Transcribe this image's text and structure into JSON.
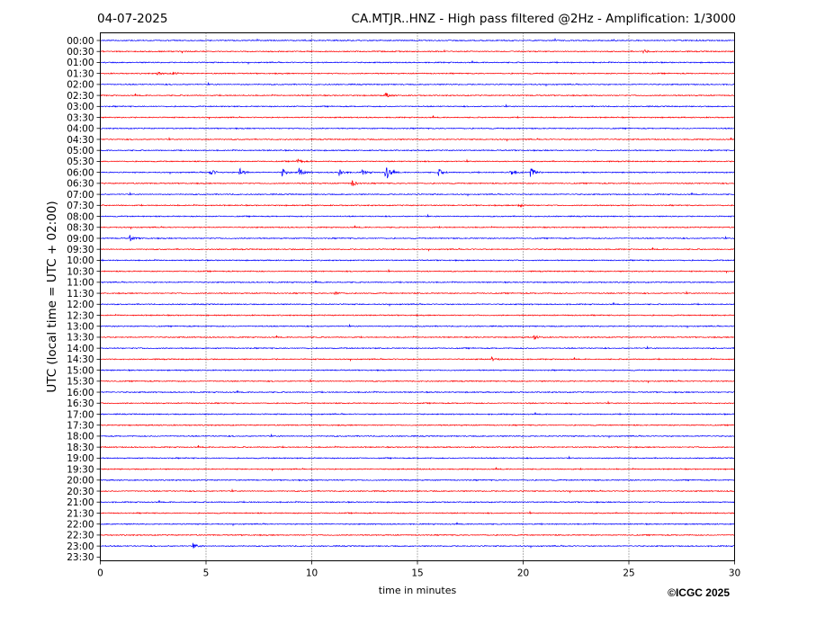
{
  "header": {
    "date": "04-07-2025",
    "title": "CA.MTJR..HNZ - High pass filtered @2Hz - Amplification: 1/3000"
  },
  "footer": {
    "copyright": "©ICGC 2025"
  },
  "colors": {
    "trace_a": "#0000ff",
    "trace_b": "#ff0000",
    "grid": "#000000"
  },
  "chart_data": {
    "type": "line",
    "title": "CA.MTJR..HNZ - High pass filtered @2Hz - Amplification: 1/3000",
    "xlabel": "time in minutes",
    "ylabel": "UTC (local time = UTC + 02:00)",
    "xlim": [
      0,
      30
    ],
    "x_ticks": [
      0,
      5,
      10,
      15,
      20,
      25,
      30
    ],
    "x_tick_labels": [
      "0",
      "5",
      "10",
      "15",
      "20",
      "25",
      "30"
    ],
    "grid": "vertical dotted at 5, 10, 15, 20, 25",
    "y_tick_labels": [
      "00:00",
      "00:30",
      "01:00",
      "01:30",
      "02:00",
      "02:30",
      "03:00",
      "03:30",
      "04:00",
      "04:30",
      "05:00",
      "05:30",
      "06:00",
      "06:30",
      "07:00",
      "07:30",
      "08:00",
      "08:30",
      "09:00",
      "09:30",
      "10:00",
      "10:30",
      "11:00",
      "11:30",
      "12:00",
      "12:30",
      "13:00",
      "13:30",
      "14:00",
      "14:30",
      "15:00",
      "15:30",
      "16:00",
      "16:30",
      "17:00",
      "17:30",
      "18:00",
      "18:30",
      "19:00",
      "19:30",
      "20:00",
      "20:30",
      "21:00",
      "21:30",
      "22:00",
      "22:30",
      "23:00",
      "23:30"
    ],
    "traces_available": 47,
    "trace_colors_alternate": [
      "blue",
      "red"
    ],
    "events": [
      {
        "row": "00:30",
        "minute": 25.7,
        "amp": 0.35
      },
      {
        "row": "01:30",
        "minute": 2.7,
        "amp": 0.3
      },
      {
        "row": "01:30",
        "minute": 3.4,
        "amp": 0.3
      },
      {
        "row": "02:30",
        "minute": 13.5,
        "amp": 0.45
      },
      {
        "row": "05:30",
        "minute": 9.3,
        "amp": 0.45
      },
      {
        "row": "06:00",
        "minute": 5.2,
        "amp": 0.7
      },
      {
        "row": "06:00",
        "minute": 6.6,
        "amp": 0.75
      },
      {
        "row": "06:00",
        "minute": 8.6,
        "amp": 0.75
      },
      {
        "row": "06:00",
        "minute": 9.4,
        "amp": 0.8
      },
      {
        "row": "06:00",
        "minute": 11.3,
        "amp": 0.7
      },
      {
        "row": "06:00",
        "minute": 12.4,
        "amp": 0.55
      },
      {
        "row": "06:00",
        "minute": 13.5,
        "amp": 1.6
      },
      {
        "row": "06:00",
        "minute": 16.0,
        "amp": 0.6
      },
      {
        "row": "06:00",
        "minute": 19.4,
        "amp": 0.7
      },
      {
        "row": "06:00",
        "minute": 20.3,
        "amp": 1.3
      },
      {
        "row": "06:30",
        "minute": 11.9,
        "amp": 0.55
      },
      {
        "row": "07:30",
        "minute": 19.8,
        "amp": 0.35
      },
      {
        "row": "09:00",
        "minute": 1.4,
        "amp": 0.5
      },
      {
        "row": "11:30",
        "minute": 11.1,
        "amp": 0.35
      },
      {
        "row": "13:30",
        "minute": 20.5,
        "amp": 0.4
      },
      {
        "row": "14:30",
        "minute": 18.5,
        "amp": 0.35
      },
      {
        "row": "23:00",
        "minute": 4.4,
        "amp": 0.45
      }
    ]
  }
}
